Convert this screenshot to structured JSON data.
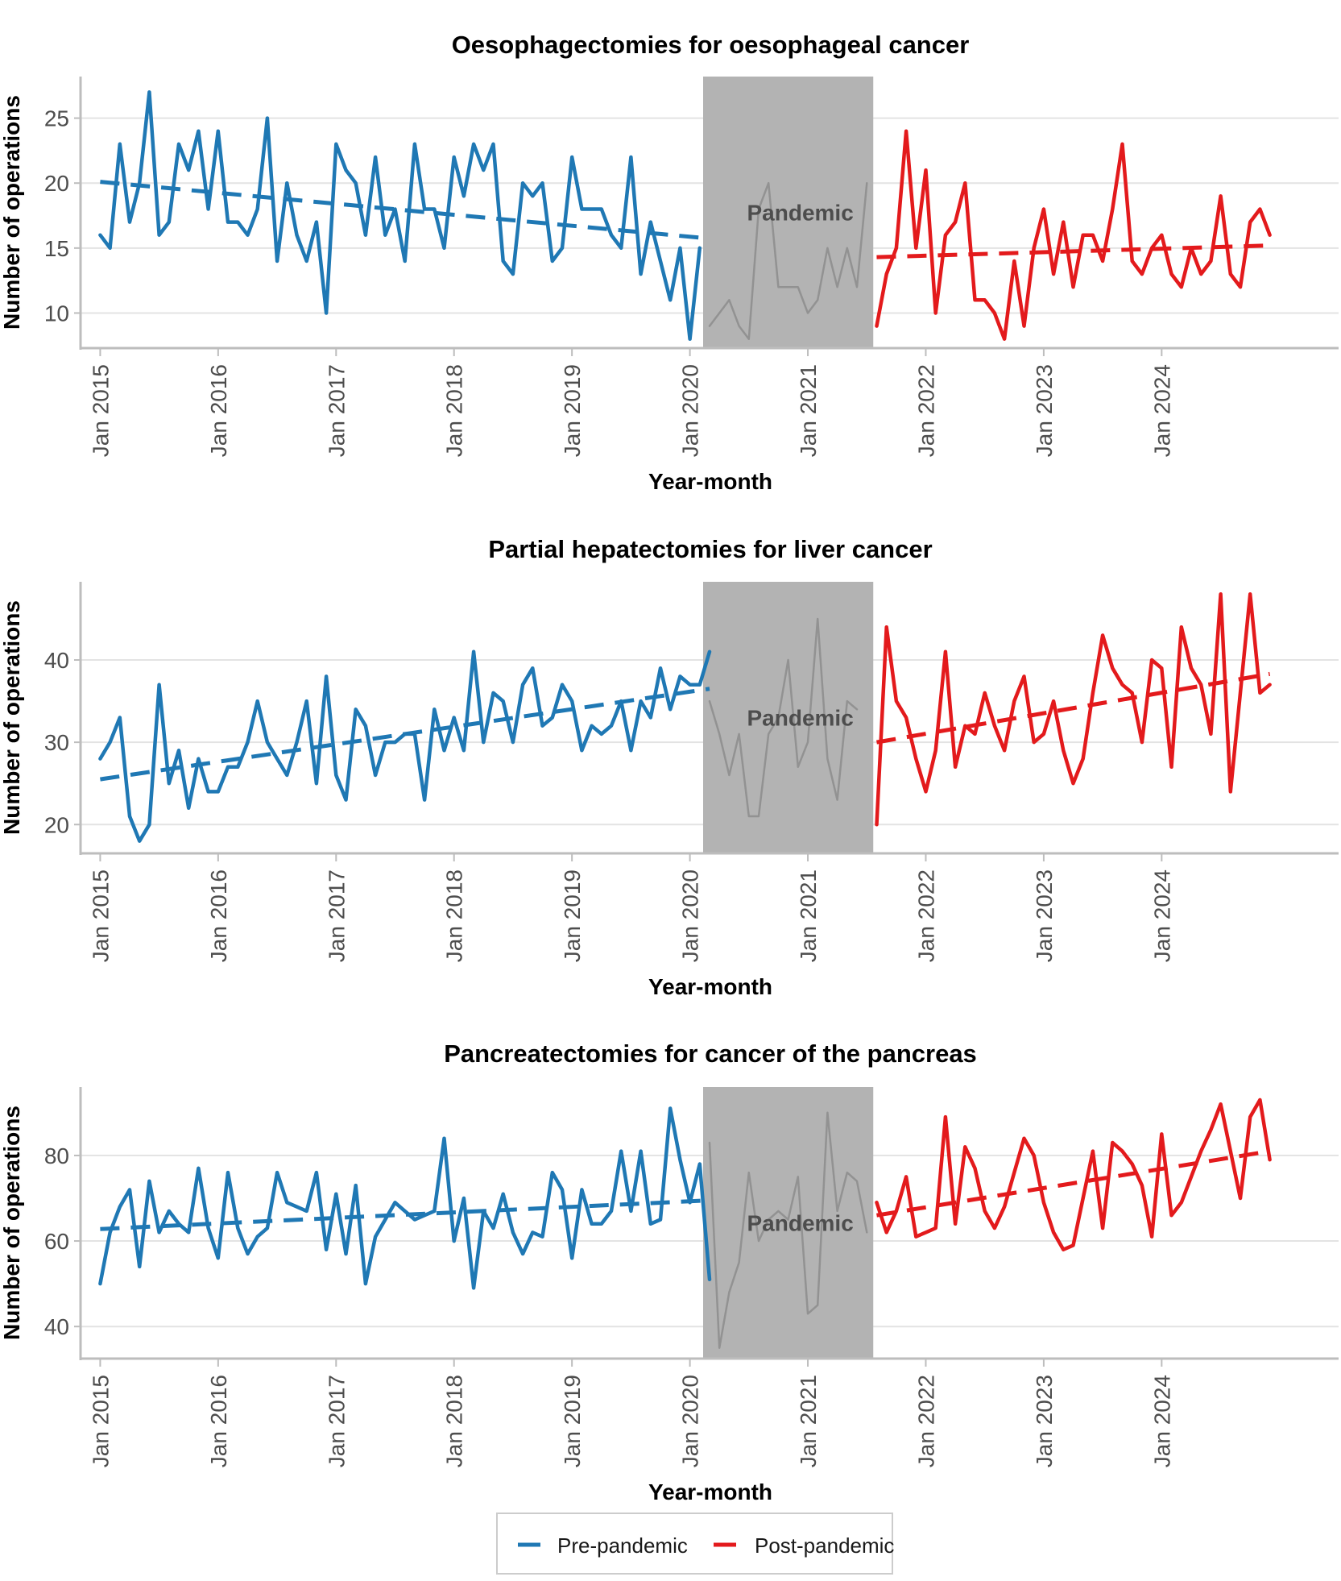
{
  "legend": {
    "items": [
      {
        "label": "Pre-pandemic",
        "color": "#1f78b4"
      },
      {
        "label": "Post-pandemic",
        "color": "#e31a1c"
      }
    ]
  },
  "chart_data": [
    {
      "type": "line",
      "title": "Oesophagectomies for oesophageal cancer",
      "xlabel": "Year-month",
      "ylabel": "Number of operations",
      "x_ticks": [
        "Jan 2015",
        "Jan 2016",
        "Jan 2017",
        "Jan 2018",
        "Jan 2019",
        "Jan 2020",
        "Jan 2021",
        "Jan 2022",
        "Jan 2023",
        "Jan 2024"
      ],
      "y_ticks": [
        10,
        15,
        20,
        25
      ],
      "ylim": [
        7.3,
        28.2
      ],
      "xlim": [
        "Nov 2014",
        "Jul 2025"
      ],
      "grid": true,
      "pandemic_band": {
        "label": "Pandemic",
        "from": "Mar 2020",
        "to": "Jul 2021"
      },
      "series": [
        {
          "name": "Pre-pandemic",
          "start": "Jan 2015",
          "values": [
            16,
            15,
            23,
            17,
            20,
            27,
            16,
            17,
            23,
            21,
            24,
            18,
            24,
            17,
            17,
            16,
            18,
            25,
            14,
            20,
            16,
            14,
            17,
            10,
            23,
            21,
            20,
            16,
            22,
            16,
            18,
            14,
            23,
            18,
            18,
            15,
            22,
            19,
            23,
            21,
            23,
            14,
            13,
            20,
            19,
            20,
            14,
            15,
            22,
            18,
            18,
            18,
            16,
            15,
            22,
            13,
            17,
            14,
            11,
            15,
            8,
            15
          ]
        },
        {
          "name": "Pandemic",
          "start": "Mar 2020",
          "values": [
            9,
            10,
            11,
            9,
            8,
            18,
            20,
            12,
            12,
            12,
            10,
            11,
            15,
            12,
            15,
            12,
            20
          ]
        },
        {
          "name": "Post-pandemic",
          "start": "Aug 2021",
          "values": [
            9,
            13,
            15,
            24,
            15,
            21,
            10,
            16,
            17,
            20,
            11,
            11,
            10,
            8,
            14,
            9,
            15,
            18,
            13,
            17,
            12,
            16,
            16,
            14,
            18,
            23,
            14,
            13,
            15,
            16,
            13,
            12,
            15,
            13,
            14,
            19,
            13,
            12,
            17,
            18,
            16
          ]
        },
        {
          "name": "Pre-pandemic trend",
          "from": [
            "Jan 2015",
            20.1
          ],
          "to": [
            "Feb 2020",
            15.8
          ]
        },
        {
          "name": "Post-pandemic trend",
          "from": [
            "Aug 2021",
            14.3
          ],
          "to": [
            "Dec 2024",
            15.2
          ]
        }
      ]
    },
    {
      "type": "line",
      "title": "Partial hepatectomies for liver cancer",
      "xlabel": "Year-month",
      "ylabel": "Number of operations",
      "x_ticks": [
        "Jan 2015",
        "Jan 2016",
        "Jan 2017",
        "Jan 2018",
        "Jan 2019",
        "Jan 2020",
        "Jan 2021",
        "Jan 2022",
        "Jan 2023",
        "Jan 2024"
      ],
      "y_ticks": [
        20,
        30,
        40
      ],
      "ylim": [
        16.5,
        49.5
      ],
      "xlim": [
        "Nov 2014",
        "Jul 2025"
      ],
      "grid": true,
      "pandemic_band": {
        "label": "Pandemic",
        "from": "Mar 2020",
        "to": "Jul 2021"
      },
      "series": [
        {
          "name": "Pre-pandemic",
          "start": "Jan 2015",
          "values": [
            28,
            30,
            33,
            21,
            18,
            20,
            37,
            25,
            29,
            22,
            28,
            24,
            24,
            27,
            27,
            30,
            35,
            30,
            28,
            26,
            30,
            35,
            25,
            38,
            26,
            23,
            34,
            32,
            26,
            30,
            30,
            31,
            31,
            23,
            34,
            29,
            33,
            29,
            41,
            30,
            36,
            35,
            30,
            37,
            39,
            32,
            33,
            37,
            35,
            29,
            32,
            31,
            32,
            35,
            29,
            35,
            33,
            39,
            34,
            38,
            37,
            37,
            41
          ]
        },
        {
          "name": "Pandemic",
          "start": "Mar 2020",
          "values": [
            35,
            31,
            26,
            31,
            21,
            21,
            31,
            33,
            40,
            27,
            30,
            45,
            28,
            23,
            35,
            34
          ]
        },
        {
          "name": "Post-pandemic",
          "start": "Aug 2021",
          "values": [
            20,
            44,
            35,
            33,
            28,
            24,
            29,
            41,
            27,
            32,
            31,
            36,
            32,
            29,
            35,
            38,
            30,
            31,
            35,
            29,
            25,
            28,
            36,
            43,
            39,
            37,
            36,
            30,
            40,
            39,
            27,
            44,
            39,
            37,
            31,
            48,
            24,
            36,
            48,
            36,
            37
          ]
        },
        {
          "name": "Pre-pandemic trend",
          "from": [
            "Jan 2015",
            25.5
          ],
          "to": [
            "Mar 2020",
            36.5
          ]
        },
        {
          "name": "Post-pandemic trend",
          "from": [
            "Aug 2021",
            30.0
          ],
          "to": [
            "Dec 2024",
            38.3
          ]
        }
      ]
    },
    {
      "type": "line",
      "title": "Pancreatectomies for cancer of the pancreas",
      "xlabel": "Year-month",
      "ylabel": "Number of operations",
      "x_ticks": [
        "Jan 2015",
        "Jan 2016",
        "Jan 2017",
        "Jan 2018",
        "Jan 2019",
        "Jan 2020",
        "Jan 2021",
        "Jan 2022",
        "Jan 2023",
        "Jan 2024"
      ],
      "y_ticks": [
        40,
        60,
        80
      ],
      "ylim": [
        32.5,
        96
      ],
      "xlim": [
        "Nov 2014",
        "Jul 2025"
      ],
      "grid": true,
      "pandemic_band": {
        "label": "Pandemic",
        "from": "Mar 2020",
        "to": "Jul 2021"
      },
      "series": [
        {
          "name": "Pre-pandemic",
          "start": "Jan 2015",
          "values": [
            50,
            62,
            68,
            72,
            54,
            74,
            62,
            67,
            64,
            62,
            77,
            63,
            56,
            76,
            63,
            57,
            61,
            63,
            76,
            69,
            68,
            67,
            76,
            58,
            71,
            57,
            73,
            50,
            61,
            65,
            69,
            67,
            65,
            66,
            67,
            84,
            60,
            70,
            49,
            67,
            63,
            71,
            62,
            57,
            62,
            61,
            76,
            72,
            56,
            72,
            64,
            64,
            67,
            81,
            67,
            81,
            64,
            65,
            91,
            79,
            69,
            78,
            51
          ]
        },
        {
          "name": "Pandemic",
          "start": "Mar 2020",
          "values": [
            83,
            35,
            48,
            55,
            76,
            60,
            65,
            67,
            65,
            75,
            43,
            45,
            90,
            67,
            76,
            74,
            62
          ]
        },
        {
          "name": "Post-pandemic",
          "start": "Aug 2021",
          "values": [
            69,
            62,
            67,
            75,
            61,
            62,
            63,
            89,
            64,
            82,
            77,
            67,
            63,
            68,
            76,
            84,
            80,
            69,
            62,
            58,
            59,
            70,
            81,
            63,
            83,
            81,
            78,
            73,
            61,
            85,
            66,
            69,
            75,
            81,
            86,
            92,
            81,
            70,
            89,
            93,
            79
          ]
        },
        {
          "name": "Pre-pandemic trend",
          "from": [
            "Jan 2015",
            62.8
          ],
          "to": [
            "Mar 2020",
            69.5
          ]
        },
        {
          "name": "Post-pandemic trend",
          "from": [
            "Aug 2021",
            66.0
          ],
          "to": [
            "Dec 2024",
            81.0
          ]
        }
      ]
    }
  ]
}
